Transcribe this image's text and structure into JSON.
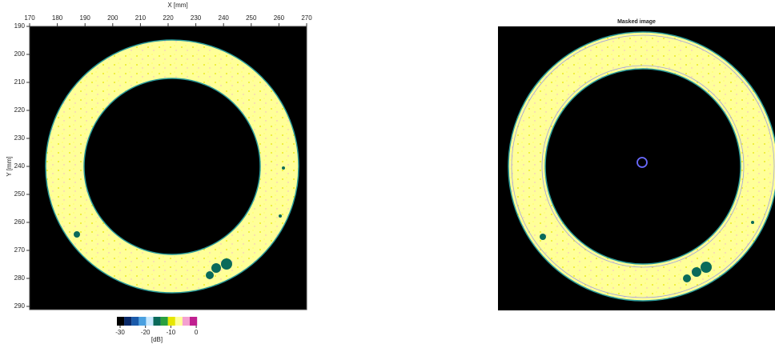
{
  "left_panel": {
    "x_axis_label": "X [mm]",
    "y_axis_label": "Y [mm]",
    "x_ticks": [
      "170",
      "180",
      "190",
      "200",
      "210",
      "220",
      "230",
      "240",
      "250",
      "260",
      "270"
    ],
    "y_ticks": [
      "190",
      "200",
      "210",
      "220",
      "230",
      "240",
      "250",
      "260",
      "270",
      "280",
      "290"
    ],
    "colorbar_ticks": [
      "-30",
      "-20",
      "-10",
      "0"
    ],
    "colorbar_unit": "[dB]"
  },
  "right_panel": {
    "title": "Masked image"
  }
}
